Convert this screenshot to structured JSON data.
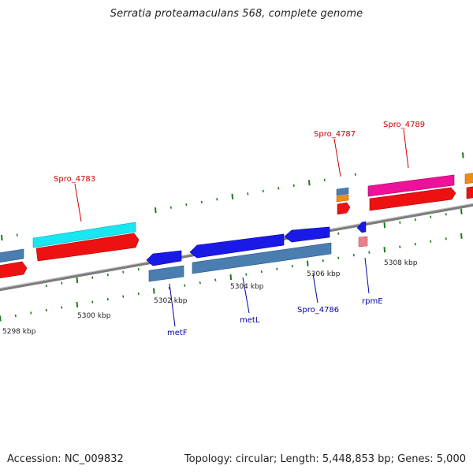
{
  "title": "Serratia proteamaculans 568, complete genome",
  "footer": {
    "accession": "Accession: NC_009832",
    "stats": "Topology: circular; Length: 5,448,853 bp; Genes: 5,000"
  },
  "ticks": [
    "5298 kbp",
    "5300 kbp",
    "5302 kbp",
    "5304 kbp",
    "5306 kbp",
    "5308 kbp"
  ],
  "labels": {
    "top": [
      "Spro_4783",
      "Spro_4787",
      "Spro_4789"
    ],
    "bottom": [
      "metF",
      "metL",
      "Spro_4786",
      "rpmE"
    ]
  },
  "colors": {
    "forward_label": "#cc0000",
    "reverse_label": "#0000aa",
    "backbone": "#8c8c8c",
    "cds_red": "#ee1111",
    "cds_steel": "#4a7db0",
    "cds_blue": "#1a1ae6",
    "cds_cyan": "#19e6f0",
    "cds_magenta": "#ee1199",
    "cds_orange": "#f08c14",
    "cds_pink": "#e87f8a",
    "tick": "#1a7a1a"
  }
}
